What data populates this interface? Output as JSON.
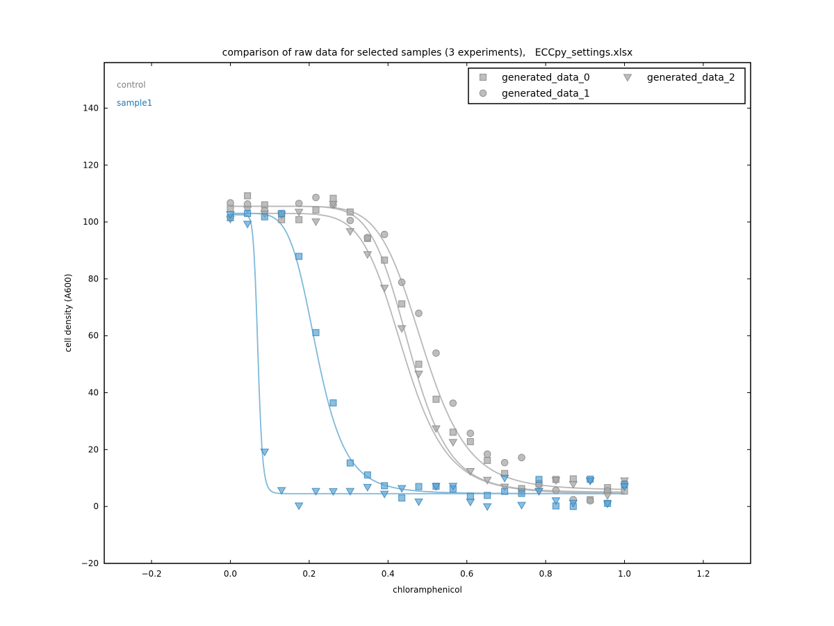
{
  "colors": {
    "control": "#a8a8a8",
    "control_line": "#b8b8b8",
    "control_label": "#7f7f7f",
    "sample1": "#5ba3d0",
    "sample1_line": "#7fb8da",
    "sample1_label": "#1f77b4"
  },
  "chart_data": {
    "type": "scatter",
    "title": "comparison of raw data for selected samples (3 experiments),   ECCpy_settings.xlsx",
    "xlabel": "chloramphenicol",
    "ylabel": "cell density (A600)",
    "xlim": [
      -0.32,
      1.32
    ],
    "ylim": [
      -20,
      156
    ],
    "xticks": [
      -0.2,
      0.0,
      0.2,
      0.4,
      0.6,
      0.8,
      1.0,
      1.2
    ],
    "xtick_labels": [
      "−0.2",
      "0.0",
      "0.2",
      "0.4",
      "0.6",
      "0.8",
      "1.0",
      "1.2"
    ],
    "yticks": [
      -20,
      0,
      20,
      40,
      60,
      80,
      100,
      120,
      140
    ],
    "ytick_labels": [
      "−20",
      "0",
      "20",
      "40",
      "60",
      "80",
      "100",
      "120",
      "140"
    ],
    "grid": false,
    "legend_position": "top-right",
    "legend": [
      {
        "name": "generated_data_0",
        "marker": "square"
      },
      {
        "name": "generated_data_1",
        "marker": "circle"
      },
      {
        "name": "generated_data_2",
        "marker": "triangle-down"
      }
    ],
    "annotations": [
      {
        "text": "control",
        "group": "control"
      },
      {
        "text": "sample1",
        "group": "sample1"
      }
    ],
    "series": [
      {
        "group": "control",
        "experiment": "generated_data_0",
        "marker": "square",
        "x": [
          0.0,
          0.0435,
          0.087,
          0.13,
          0.174,
          0.217,
          0.261,
          0.304,
          0.348,
          0.391,
          0.435,
          0.478,
          0.522,
          0.565,
          0.609,
          0.652,
          0.696,
          0.739,
          0.783,
          0.826,
          0.87,
          0.913,
          0.957,
          1.0
        ],
        "y": [
          104.8,
          109.2,
          106.0,
          100.8,
          100.8,
          104.2,
          108.3,
          103.5,
          94.2,
          86.6,
          71.2,
          50.0,
          37.7,
          26.1,
          22.8,
          16.2,
          11.6,
          6.3,
          8.1,
          9.5,
          9.7,
          2.4,
          6.6,
          5.4
        ],
        "curve": {
          "top": 105.5,
          "bottom": 5.0,
          "ec50": 0.455,
          "hill": 9.0
        }
      },
      {
        "group": "control",
        "experiment": "generated_data_1",
        "marker": "circle",
        "x": [
          0.0,
          0.0435,
          0.087,
          0.13,
          0.174,
          0.217,
          0.261,
          0.304,
          0.348,
          0.391,
          0.435,
          0.478,
          0.522,
          0.565,
          0.609,
          0.652,
          0.696,
          0.739,
          0.783,
          0.826,
          0.87,
          0.913,
          0.957,
          1.0
        ],
        "y": [
          106.7,
          106.3,
          104.0,
          102.7,
          106.5,
          108.6,
          106.0,
          100.5,
          94.5,
          95.6,
          78.8,
          67.9,
          53.9,
          36.3,
          25.7,
          18.4,
          15.4,
          17.2,
          7.7,
          5.7,
          2.4,
          2.0,
          5.5,
          8.0
        ],
        "curve": {
          "top": 105.5,
          "bottom": 5.8,
          "ec50": 0.49,
          "hill": 8.5
        }
      },
      {
        "group": "control",
        "experiment": "generated_data_2",
        "marker": "triangle-down",
        "x": [
          0.0,
          0.0435,
          0.087,
          0.13,
          0.174,
          0.217,
          0.261,
          0.304,
          0.348,
          0.391,
          0.435,
          0.478,
          0.522,
          0.565,
          0.609,
          0.652,
          0.696,
          0.739,
          0.783,
          0.826,
          0.87,
          0.913,
          0.957,
          1.0
        ],
        "y": [
          101.0,
          104.4,
          102.9,
          102.6,
          103.5,
          100.1,
          106.3,
          96.7,
          88.6,
          76.8,
          62.6,
          46.6,
          27.4,
          22.6,
          12.4,
          9.3,
          6.9,
          5.3,
          5.4,
          9.2,
          7.8,
          9.0,
          3.9,
          9.1
        ],
        "curve": {
          "top": 103.0,
          "bottom": 4.5,
          "ec50": 0.44,
          "hill": 8.0
        }
      },
      {
        "group": "sample1",
        "experiment": "generated_data_0",
        "marker": "square",
        "x": [
          0.0,
          0.0435,
          0.087,
          0.13,
          0.174,
          0.217,
          0.261,
          0.304,
          0.348,
          0.391,
          0.435,
          0.478,
          0.522,
          0.565,
          0.609,
          0.652,
          0.696,
          0.739,
          0.783,
          0.826,
          0.87,
          0.913,
          0.957,
          1.0
        ],
        "y": [
          101.5,
          103.0,
          101.8,
          103.0,
          87.9,
          61.1,
          36.4,
          15.3,
          11.1,
          7.3,
          3.0,
          7.0,
          7.1,
          6.2,
          3.6,
          3.9,
          5.3,
          4.6,
          9.5,
          0.2,
          0.0,
          9.6,
          1.1,
          7.8
        ],
        "curve": {
          "top": 103.0,
          "bottom": 4.5,
          "ec50": 0.22,
          "hill": 6.0
        }
      },
      {
        "group": "sample1",
        "experiment": "generated_data_2",
        "marker": "triangle-down",
        "x": [
          0.0,
          0.0435,
          0.087,
          0.13,
          0.174,
          0.217,
          0.261,
          0.304,
          0.348,
          0.391,
          0.435,
          0.478,
          0.522,
          0.565,
          0.609,
          0.652,
          0.696,
          0.739,
          0.783,
          0.826,
          0.87,
          0.913,
          0.957,
          1.0
        ],
        "y": [
          102.6,
          99.3,
          19.2,
          5.7,
          0.3,
          5.4,
          5.3,
          5.4,
          6.8,
          4.4,
          6.4,
          1.7,
          7.1,
          7.2,
          1.6,
          0.0,
          10.0,
          0.5,
          5.4,
          2.1,
          1.2,
          9.1,
          1.0,
          7.0
        ],
        "curve": {
          "top": 102.5,
          "bottom": 4.5,
          "ec50": 0.07,
          "hill": 12.0
        }
      }
    ]
  }
}
